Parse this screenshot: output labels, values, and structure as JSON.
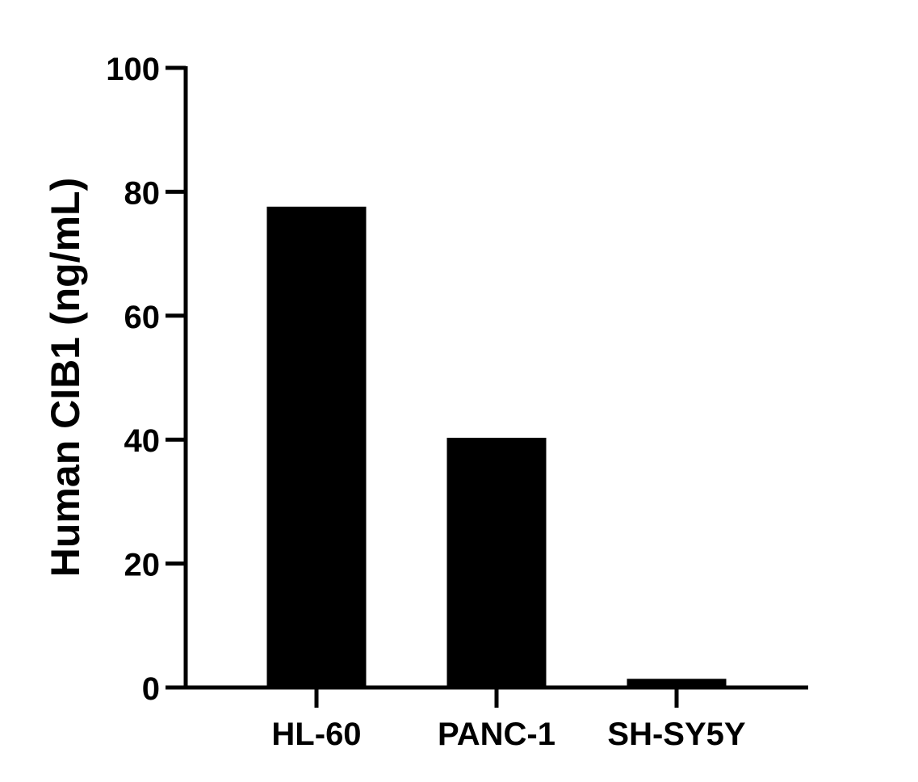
{
  "chart_data": {
    "type": "bar",
    "categories": [
      "HL-60",
      "PANC-1",
      "SH-SY5Y"
    ],
    "values": [
      77.6,
      40.3,
      1.4
    ],
    "title": "",
    "xlabel": "",
    "ylabel": "Human CIB1 (ng/mL)",
    "ylim": [
      0,
      100
    ],
    "yticks": [
      0,
      20,
      40,
      60,
      80,
      100
    ],
    "bar_color": "#000000",
    "grid": false,
    "legend": "none"
  }
}
